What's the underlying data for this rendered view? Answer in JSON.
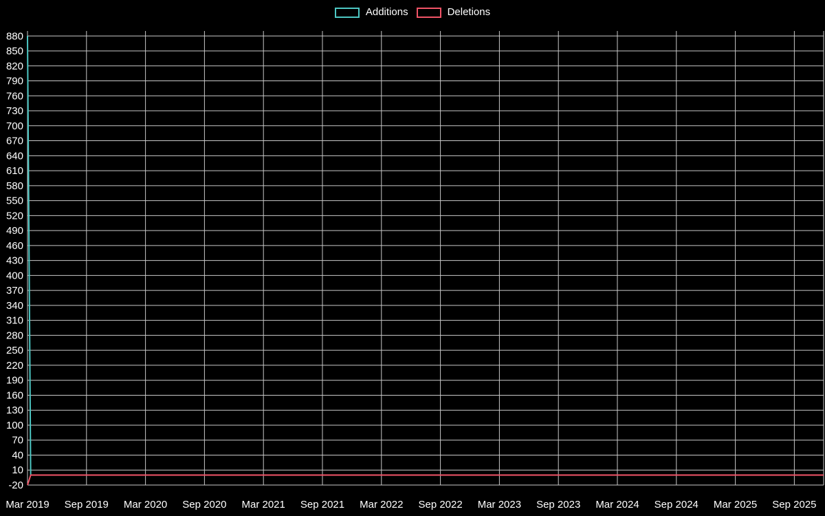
{
  "page": {
    "background": "#000000"
  },
  "legend": {
    "items": [
      {
        "label": "Additions",
        "color": "#4dc8c4"
      },
      {
        "label": "Deletions",
        "color": "#f25467"
      }
    ]
  },
  "chart_data": {
    "type": "line",
    "title": "",
    "xlabel": "",
    "ylabel": "",
    "grid": true,
    "legend_position": "top-center",
    "background_color": "#000000",
    "grid_color": "#c9c9c9",
    "text_color": "#ffffff",
    "x_tick_labels": [
      "Mar 2019",
      "Sep 2019",
      "Mar 2020",
      "Sep 2020",
      "Mar 2021",
      "Sep 2021",
      "Mar 2022",
      "Sep 2022",
      "Mar 2023",
      "Sep 2023",
      "Mar 2024",
      "Sep 2024",
      "Mar 2025",
      "Sep 2025"
    ],
    "y_ticks": [
      880,
      850,
      820,
      790,
      760,
      730,
      700,
      670,
      640,
      610,
      580,
      550,
      520,
      490,
      460,
      430,
      400,
      370,
      340,
      310,
      280,
      250,
      220,
      190,
      160,
      130,
      100,
      70,
      40,
      10,
      -20
    ],
    "ylim": [
      -20,
      890
    ],
    "series": [
      {
        "name": "Additions",
        "color": "#4dc8c4",
        "points": [
          [
            0,
            880
          ],
          [
            0.004,
            0
          ],
          [
            1,
            0
          ]
        ]
      },
      {
        "name": "Deletions",
        "color": "#f25467",
        "points": [
          [
            0,
            -20
          ],
          [
            0.004,
            0
          ],
          [
            1,
            0
          ]
        ]
      }
    ]
  }
}
